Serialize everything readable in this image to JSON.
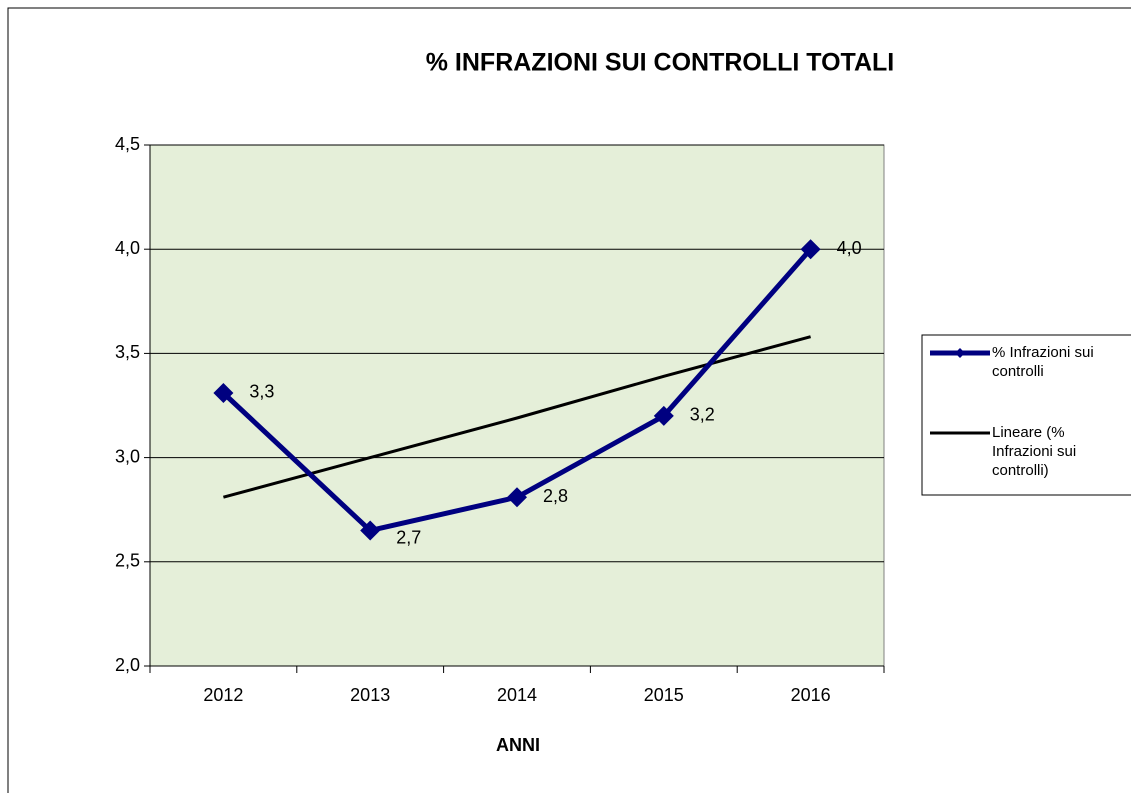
{
  "chart_data": {
    "type": "line",
    "title": "% INFRAZIONI SUI CONTROLLI TOTALI",
    "x_label": "ANNI",
    "categories": [
      "2012",
      "2013",
      "2014",
      "2015",
      "2016"
    ],
    "series": [
      {
        "name": "% Infrazioni sui controlli",
        "color": "#000080",
        "values": [
          3.31,
          2.65,
          2.81,
          3.2,
          4.0
        ],
        "value_labels": [
          "3,3",
          "2,7",
          "2,8",
          "3,2",
          "4,0"
        ]
      },
      {
        "name": "Lineare (% Infrazioni sui controlli)",
        "color": "#000000",
        "values": [
          2.81,
          3.0,
          3.19,
          3.39,
          3.58
        ]
      }
    ],
    "ylim": [
      2.0,
      4.5
    ],
    "yticks": [
      {
        "value": 2.0,
        "label": "2,0"
      },
      {
        "value": 2.5,
        "label": "2,5"
      },
      {
        "value": 3.0,
        "label": "3,0"
      },
      {
        "value": 3.5,
        "label": "3,5"
      },
      {
        "value": 4.0,
        "label": "4,0"
      },
      {
        "value": 4.5,
        "label": "4,5"
      }
    ],
    "grid": true,
    "legend": "right",
    "plot_background": "#e5efd9"
  }
}
